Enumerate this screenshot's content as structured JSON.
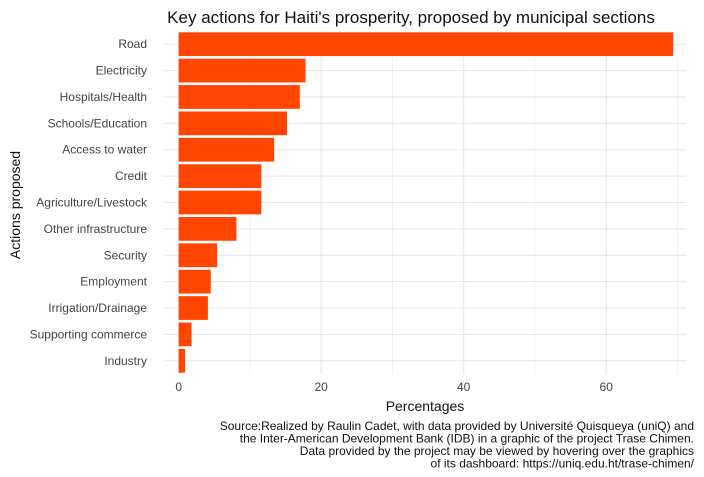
{
  "chart_data": {
    "type": "bar",
    "orientation": "horizontal",
    "title": "Key actions for Haiti's prosperity, proposed by municipal sections",
    "xlabel": "Percentages",
    "ylabel": "Actions proposed",
    "categories": [
      "Road",
      "Electricity",
      "Hospitals/Health",
      "Schools/Education",
      "Access to water",
      "Credit",
      "Agriculture/Livestock",
      "Other infrastructure",
      "Security",
      "Employment",
      "Irrigation/Drainage",
      "Supporting commerce",
      "Industry"
    ],
    "values": [
      69.4,
      17.8,
      17.0,
      15.2,
      13.4,
      11.6,
      11.6,
      8.1,
      5.4,
      4.5,
      4.1,
      1.8,
      0.9
    ],
    "xlim": [
      -2.2,
      71.2
    ],
    "x_ticks": [
      0,
      20,
      40,
      60
    ],
    "x_tick_labels": [
      "0",
      "20",
      "40",
      "60"
    ],
    "bar_color": "#ff4500",
    "grid": true,
    "caption": [
      "Source:Realized by Raulin Cadet, with data provided by Université Quisqueya (uniQ) and",
      "the Inter-American Development Bank (IDB) in a graphic of the project Trase Chimen.",
      "Data provided by the project may be viewed by hovering over the graphics",
      "of its dashboard: https://uniq.edu.ht/trase-chimen/"
    ]
  }
}
